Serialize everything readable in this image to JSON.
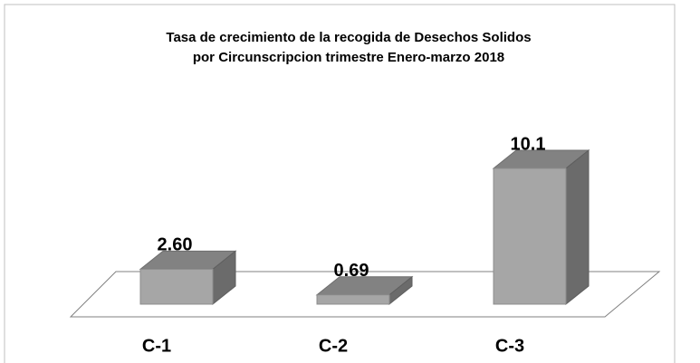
{
  "chart_data": {
    "type": "bar3d",
    "title": [
      "Tasa de crecimiento de la recogida de Desechos Solidos",
      "por Circunscripcion  trimestre Enero-marzo 2018"
    ],
    "categories": [
      "C-1",
      "C-2",
      "C-3"
    ],
    "values": [
      2.6,
      0.69,
      10.1
    ],
    "value_labels": [
      "2.60",
      "0.69",
      "10.1"
    ],
    "color": "#a6a6a6"
  }
}
